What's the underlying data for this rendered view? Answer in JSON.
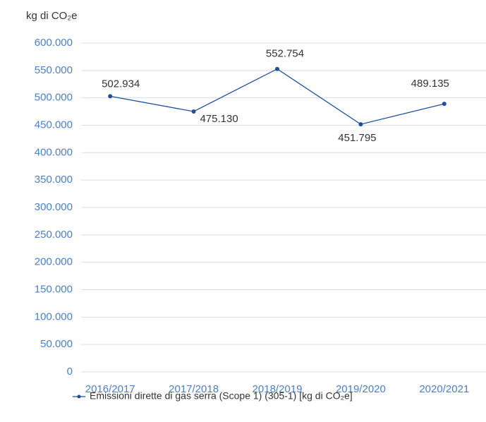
{
  "chart_data": {
    "type": "line",
    "y_axis_label": "kg di CO₂e",
    "categories": [
      "2016/2017",
      "2017/2018",
      "2018/2019",
      "2019/2020",
      "2020/2021"
    ],
    "series": [
      {
        "name": "Emissioni dirette di gas serra (Scope 1) (305-1) [kg di CO₂e]",
        "color": "#1f4e9a",
        "values": [
          502934,
          475130,
          552754,
          451795,
          489135
        ],
        "value_labels": [
          "502.934",
          "475.130",
          "552.754",
          "451.795",
          "489.135"
        ]
      }
    ],
    "ylim": [
      0,
      600000
    ],
    "yticks": [
      0,
      {
        "value": 50000,
        "label": "50.000"
      },
      {
        "value": 100000,
        "label": "100.000"
      },
      {
        "value": 150000,
        "label": "150.000"
      },
      {
        "value": 200000,
        "label": "200.000"
      },
      {
        "value": 250000,
        "label": "250.000"
      },
      {
        "value": 300000,
        "label": "300.000"
      },
      {
        "value": 350000,
        "label": "350.000"
      },
      {
        "value": 400000,
        "label": "400.000"
      },
      {
        "value": 450000,
        "label": "450.000"
      },
      {
        "value": 500000,
        "label": "500.000"
      },
      {
        "value": 550000,
        "label": "550.000"
      },
      {
        "value": 600000,
        "label": "600.000"
      }
    ],
    "grid": true,
    "legend": "bottom"
  }
}
